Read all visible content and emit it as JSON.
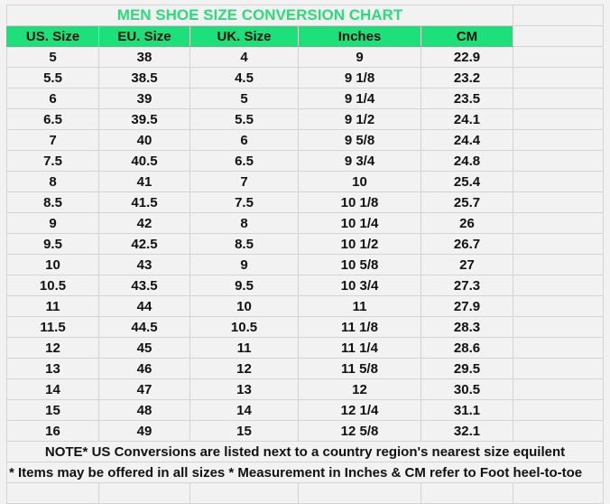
{
  "title": "MEN SHOE SIZE CONVERSION CHART",
  "colors": {
    "header_bg": "#1de07a",
    "title_text": "#2bdc7a"
  },
  "columns": [
    "US. Size",
    "EU. Size",
    "UK. Size",
    "Inches",
    "CM"
  ],
  "rows": [
    [
      "5",
      "38",
      "4",
      "9",
      "22.9"
    ],
    [
      "5.5",
      "38.5",
      "4.5",
      "9 1/8",
      "23.2"
    ],
    [
      "6",
      "39",
      "5",
      "9 1/4",
      "23.5"
    ],
    [
      "6.5",
      "39.5",
      "5.5",
      "9 1/2",
      "24.1"
    ],
    [
      "7",
      "40",
      "6",
      "9 5/8",
      "24.4"
    ],
    [
      "7.5",
      "40.5",
      "6.5",
      "9 3/4",
      "24.8"
    ],
    [
      "8",
      "41",
      "7",
      "10",
      "25.4"
    ],
    [
      "8.5",
      "41.5",
      "7.5",
      "10 1/8",
      "25.7"
    ],
    [
      "9",
      "42",
      "8",
      "10 1/4",
      "26"
    ],
    [
      "9.5",
      "42.5",
      "8.5",
      "10 1/2",
      "26.7"
    ],
    [
      "10",
      "43",
      "9",
      "10 5/8",
      "27"
    ],
    [
      "10.5",
      "43.5",
      "9.5",
      "10 3/4",
      "27.3"
    ],
    [
      "11",
      "44",
      "10",
      "11",
      "27.9"
    ],
    [
      "11.5",
      "44.5",
      "10.5",
      "11 1/8",
      "28.3"
    ],
    [
      "12",
      "45",
      "11",
      "11 1/4",
      "28.6"
    ],
    [
      "13",
      "46",
      "12",
      "11 5/8",
      "29.5"
    ],
    [
      "14",
      "47",
      "13",
      "12",
      "30.5"
    ],
    [
      "15",
      "48",
      "14",
      "12 1/4",
      "31.1"
    ],
    [
      "16",
      "49",
      "15",
      "12 5/8",
      "32.1"
    ]
  ],
  "notes": [
    "NOTE* US Conversions are listed next to a country region's nearest size equilent",
    "* Items may be offered in all sizes * Measurement in Inches & CM refer to Foot heel-to-toe"
  ]
}
